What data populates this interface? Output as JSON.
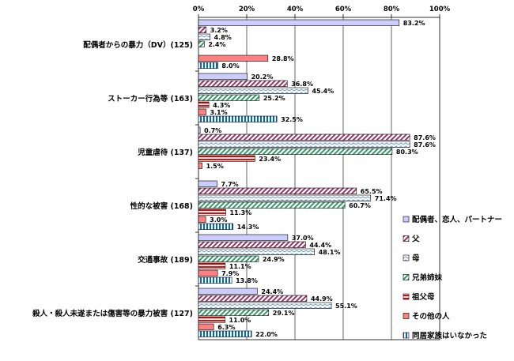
{
  "chart_data": {
    "type": "bar",
    "orientation": "horizontal",
    "x_ticks": [
      "0%",
      "20%",
      "40%",
      "60%",
      "80%",
      "100%"
    ],
    "xlim": [
      0,
      100
    ],
    "x_axis_position": "top",
    "grid": true,
    "legend_position": "right",
    "categories": [
      "配偶者からの暴力（DV）(125)",
      "ストーカー行為等 (163)",
      "児童虐待 (137)",
      "性的な被害 (168)",
      "交通事故 (189)",
      "殺人・殺人未遂または傷害等の暴力被害 (127)"
    ],
    "series": [
      {
        "name": "配偶者、恋人、パートナー",
        "color": "#ccccff",
        "pattern": "solid",
        "values": [
          83.2,
          20.2,
          0.7,
          7.7,
          37.0,
          24.4
        ],
        "labels": [
          "83.2%",
          "20.2%",
          "0.7%",
          "7.7%",
          "37.0%",
          "24.4%"
        ]
      },
      {
        "name": "父",
        "color": "#993366",
        "pattern": "diagonal",
        "values": [
          3.2,
          36.8,
          87.6,
          65.5,
          44.4,
          44.9
        ],
        "labels": [
          "3.2%",
          "36.8%",
          "87.6%",
          "65.5%",
          "44.4%",
          "44.9%"
        ]
      },
      {
        "name": "母",
        "color": "#6699cc",
        "pattern": "zigzag",
        "values": [
          4.8,
          45.4,
          87.6,
          71.4,
          48.1,
          55.1
        ],
        "labels": [
          "4.8%",
          "45.4%",
          "87.6%",
          "71.4%",
          "48.1%",
          "55.1%"
        ]
      },
      {
        "name": "兄弟姉妹",
        "color": "#339966",
        "pattern": "diagonal-green",
        "values": [
          2.4,
          25.2,
          80.3,
          60.7,
          24.9,
          29.1
        ],
        "labels": [
          "2.4%",
          "25.2%",
          "80.3%",
          "60.7%",
          "24.9%",
          "29.1%"
        ]
      },
      {
        "name": "祖父母",
        "color": "#ff0000",
        "pattern": "horizontal",
        "values": [
          0,
          4.3,
          23.4,
          11.3,
          11.1,
          11.0
        ],
        "labels": [
          "",
          "4.3%",
          "23.4%",
          "11.3%",
          "11.1%",
          "11.0%"
        ]
      },
      {
        "name": "その他の人",
        "color": "#ff8080",
        "pattern": "solid",
        "values": [
          28.8,
          3.1,
          1.5,
          3.0,
          7.9,
          6.3
        ],
        "labels": [
          "28.8%",
          "3.1%",
          "1.5%",
          "3.0%",
          "7.9%",
          "6.3%"
        ]
      },
      {
        "name": "同居家族はいなかった",
        "color": "#0066cc",
        "pattern": "vertical",
        "values": [
          8.0,
          32.5,
          0,
          14.3,
          13.8,
          22.0
        ],
        "labels": [
          "8.0%",
          "32.5%",
          "",
          "14.3%",
          "13.8%",
          "22.0%"
        ]
      }
    ]
  }
}
